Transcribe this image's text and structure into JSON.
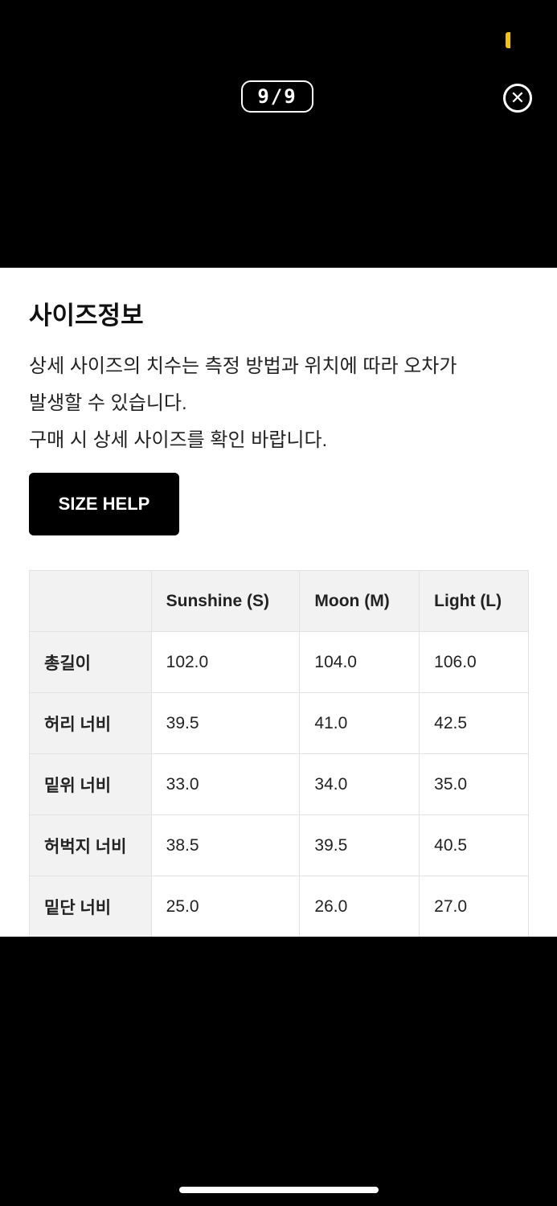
{
  "viewer": {
    "counter": "9/9",
    "close_icon": "close-circle-icon",
    "status_color": "#f5c400"
  },
  "panel": {
    "title": "사이즈정보",
    "description": [
      "상세 사이즈의 치수는 측정 방법과 위치에 따라 오차가",
      "발생할 수 있습니다.",
      "구매 시 상세 사이즈를 확인 바랍니다."
    ],
    "size_help_label": "SIZE HELP",
    "table": {
      "headers": [
        "",
        "Sunshine (S)",
        "Moon (M)",
        "Light (L)"
      ],
      "rows": [
        [
          "총길이",
          "102.0",
          "104.0",
          "106.0"
        ],
        [
          "허리 너비",
          "39.5",
          "41.0",
          "42.5"
        ],
        [
          "밑위 너비",
          "33.0",
          "34.0",
          "35.0"
        ],
        [
          "허벅지 너비",
          "38.5",
          "39.5",
          "40.5"
        ],
        [
          "밑단 너비",
          "25.0",
          "26.0",
          "27.0"
        ]
      ]
    }
  }
}
